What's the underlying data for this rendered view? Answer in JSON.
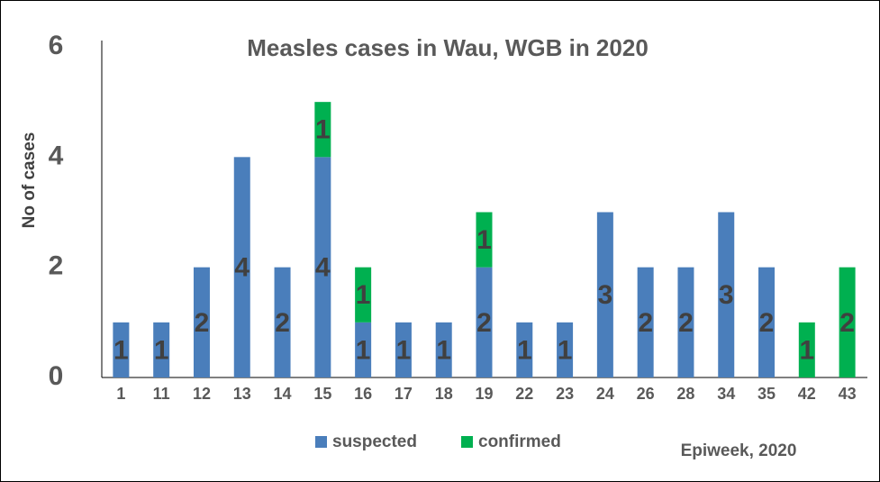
{
  "chart_data": {
    "type": "stacked_bar",
    "title": "Measles cases in Wau, WGB in 2020",
    "y_label": "No of cases",
    "x_label": "Epiweek, 2020",
    "categories": [
      "1",
      "11",
      "12",
      "13",
      "14",
      "15",
      "16",
      "17",
      "18",
      "19",
      "22",
      "23",
      "24",
      "26",
      "28",
      "34",
      "35",
      "42",
      "43"
    ],
    "series": [
      {
        "name": "suspected",
        "color": "#4a7ebb",
        "values": [
          1,
          1,
          2,
          4,
          2,
          4,
          1,
          1,
          1,
          2,
          1,
          1,
          3,
          2,
          2,
          3,
          2,
          0,
          0
        ]
      },
      {
        "name": "confirmed",
        "color": "#00b050",
        "values": [
          0,
          0,
          0,
          0,
          0,
          1,
          1,
          0,
          0,
          1,
          0,
          0,
          0,
          0,
          0,
          0,
          0,
          1,
          2
        ]
      }
    ],
    "ylim": [
      0,
      6
    ],
    "yticks": [
      0,
      2,
      4,
      6
    ],
    "grid": false,
    "legend": "bottom"
  }
}
